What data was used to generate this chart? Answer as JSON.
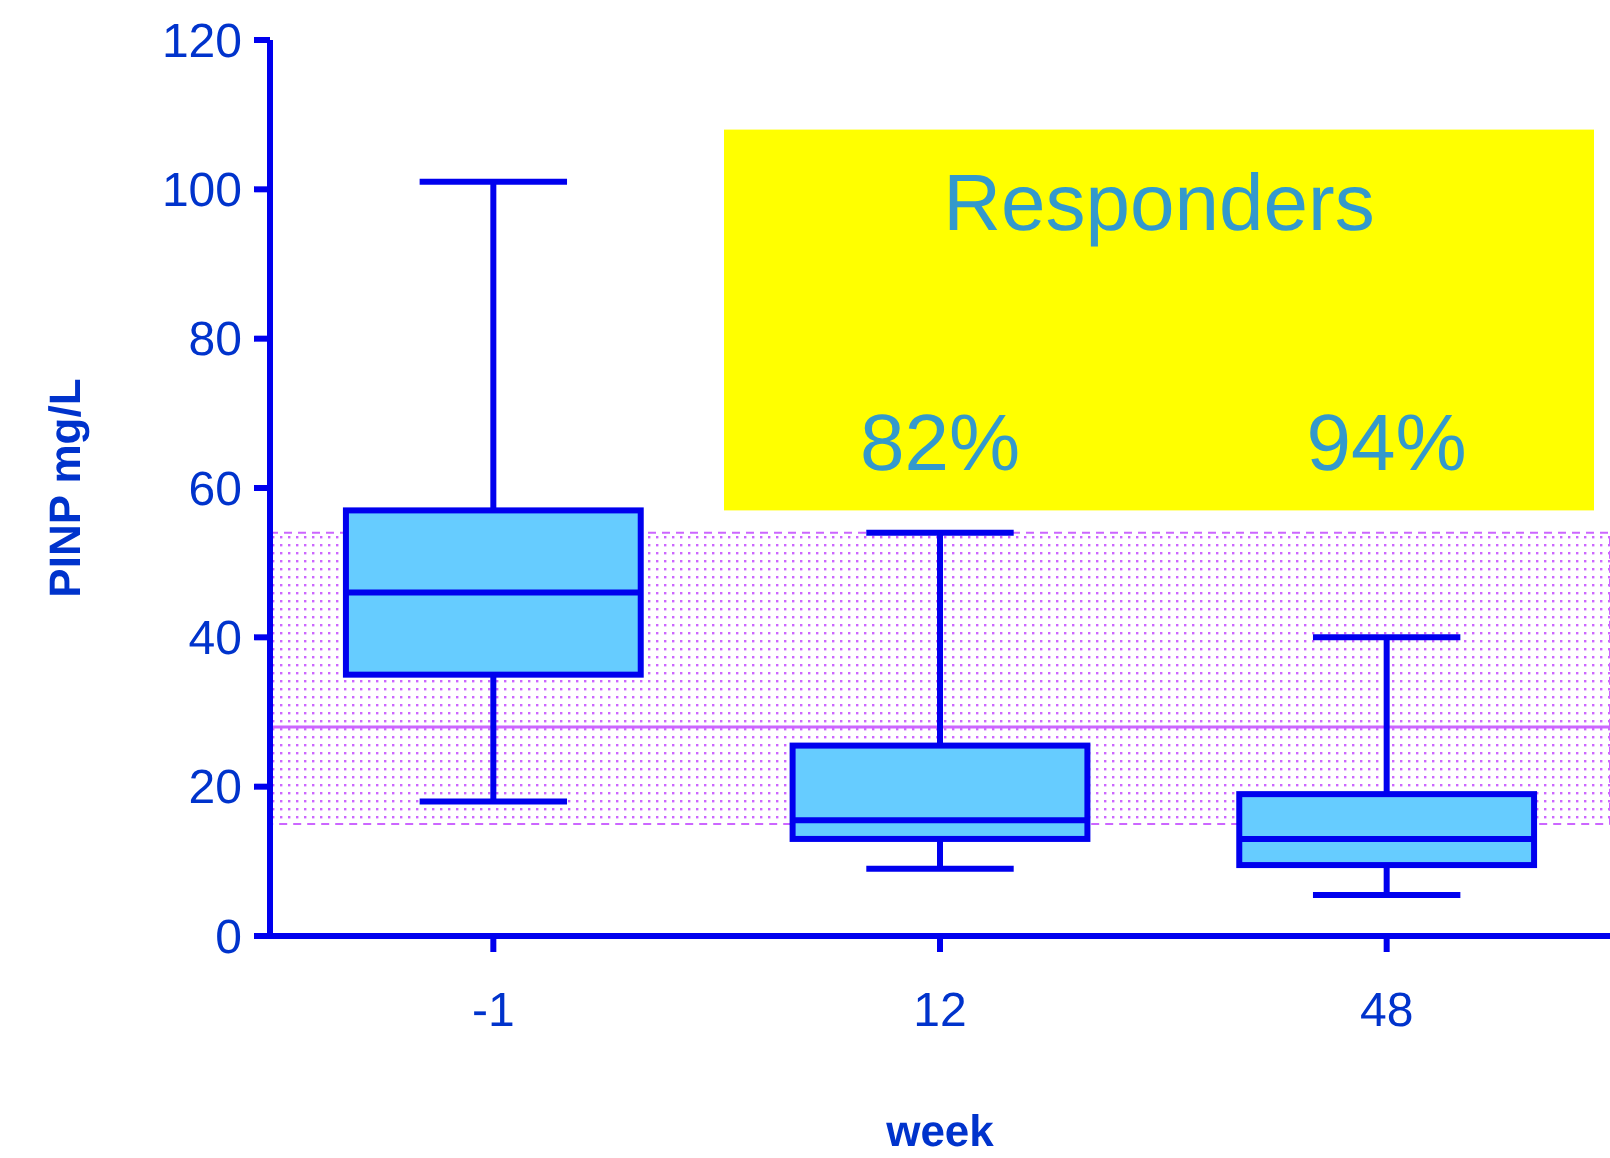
{
  "chart_data": {
    "type": "box",
    "xlabel": "week",
    "ylabel": "PINP mg/L",
    "categories": [
      "-1",
      "12",
      "48"
    ],
    "boxes": [
      {
        "low": 18,
        "q1": 35,
        "median": 46,
        "q3": 57,
        "high": 101
      },
      {
        "low": 9,
        "q1": 13,
        "median": 15.5,
        "q3": 25.5,
        "high": 54
      },
      {
        "low": 5.5,
        "q1": 9.5,
        "median": 13,
        "q3": 19,
        "high": 40
      }
    ],
    "color": "#66ccff",
    "ylim": [
      0,
      120
    ],
    "yticks": [
      0,
      20,
      40,
      60,
      80,
      100,
      120
    ],
    "grid": false,
    "bands": [
      {
        "axis": "y",
        "from": 15,
        "to": 54,
        "color": "#cc66ff"
      }
    ],
    "ref_lines": [
      {
        "axis": "y",
        "value": 28,
        "color": "#cc66ff"
      }
    ],
    "annotations": [
      "Responders",
      "82%",
      "94%"
    ]
  }
}
